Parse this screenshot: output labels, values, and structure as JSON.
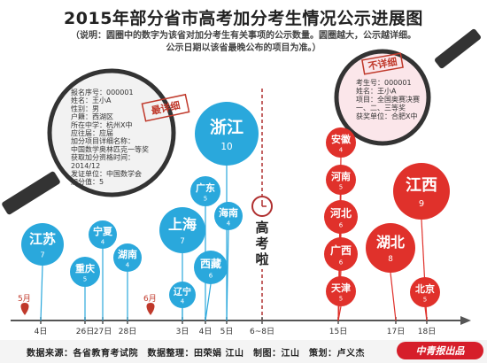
{
  "title": "2015年部分省市高考加分考生情况公示进展图",
  "note_line1": "（说明：圆圈中的数字为该省对加分考生有关事项的公示数量。圆圈越大，公示越详细。",
  "note_line2": "公示日期以该省最晚公布的项目为准。）",
  "footer": "数据来源：各省教育考试院　数据整理：田荣娟 江山　制图：江山　策划：卢义杰",
  "brand": "中青报出品",
  "exam_label": [
    "高",
    "考",
    "啦"
  ],
  "months": {
    "may": "5月",
    "june": "6月"
  },
  "dates": [
    "4日",
    "26日",
    "27日",
    "28日",
    "3日",
    "4日",
    "5日",
    "6~8日",
    "15日",
    "17日",
    "18日"
  ],
  "left_card": {
    "stamp": "最详细",
    "lines": [
      "报名序号：000001",
      "姓名：王小A",
      "性别：男",
      "户籍：西湖区",
      "所在中学：杭州X中",
      "应往届：应届",
      "加分项目详细名称：",
      "中国数学奥林匹克一等奖",
      "获取加分资格时间：",
      "2014/12",
      "发证单位：中国数学会",
      "加分值：5"
    ]
  },
  "right_card": {
    "stamp": "不详细",
    "lines": [
      "考生号：000001",
      "姓名：王小A",
      "项目：全国奥赛决赛",
      "一、二、三等奖",
      "获奖单位：合肥X中"
    ]
  },
  "blue_bubbles": [
    {
      "name": "江苏",
      "count": "7"
    },
    {
      "name": "重庆",
      "count": "5"
    },
    {
      "name": "宁夏",
      "count": "4"
    },
    {
      "name": "湖南",
      "count": "4"
    },
    {
      "name": "上海",
      "count": "7"
    },
    {
      "name": "辽宁",
      "count": "4"
    },
    {
      "name": "广东",
      "count": "5"
    },
    {
      "name": "西藏",
      "count": "6"
    },
    {
      "name": "海南",
      "count": "4"
    },
    {
      "name": "浙江",
      "count": "10"
    }
  ],
  "red_bubbles": [
    {
      "name": "安徽",
      "count": "4"
    },
    {
      "name": "河南",
      "count": "5"
    },
    {
      "name": "河北",
      "count": "6"
    },
    {
      "name": "广西",
      "count": "6"
    },
    {
      "name": "天津",
      "count": "5"
    },
    {
      "name": "湖北",
      "count": "8"
    },
    {
      "name": "江西",
      "count": "9"
    },
    {
      "name": "北京",
      "count": "5"
    }
  ],
  "colors": {
    "blue": "#2aa8dc",
    "red": "#e0312b",
    "axis": "#555555"
  }
}
